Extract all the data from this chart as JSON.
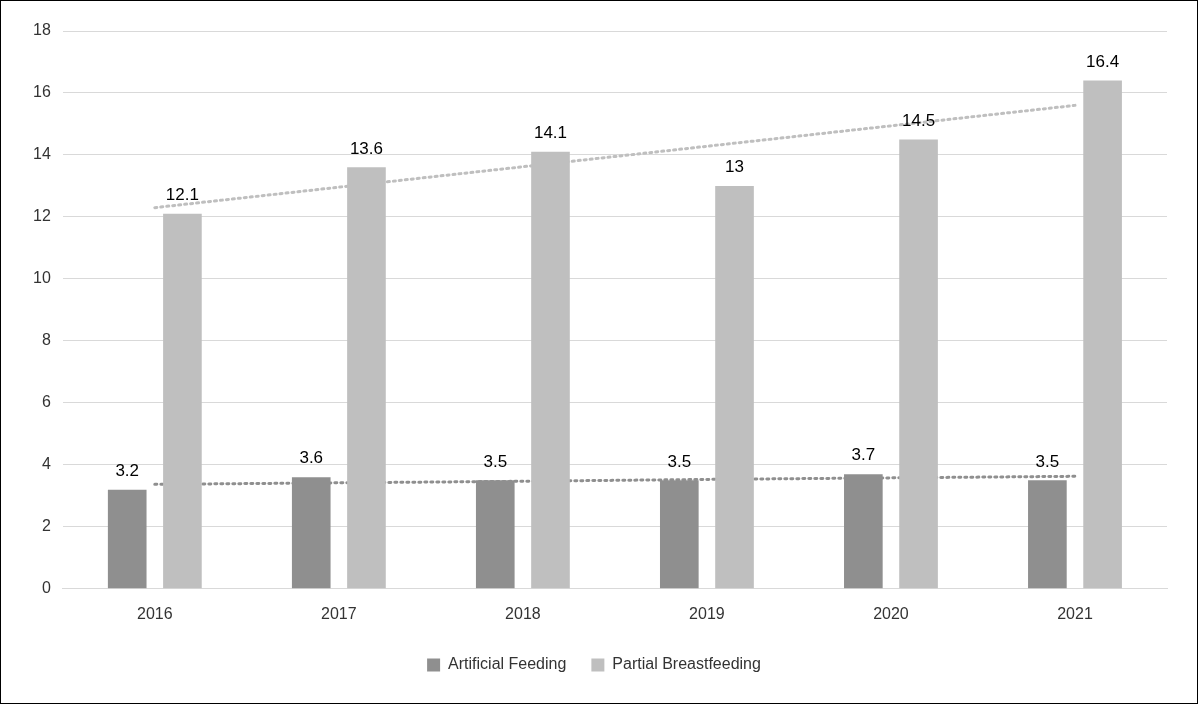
{
  "chart_data": {
    "type": "bar",
    "categories": [
      "2016",
      "2017",
      "2018",
      "2019",
      "2020",
      "2021"
    ],
    "series": [
      {
        "name": "Artificial Feeding",
        "color": "#8f8f8f",
        "values": [
          3.2,
          3.6,
          3.5,
          3.5,
          3.7,
          3.5
        ],
        "value_labels": [
          "3.2",
          "3.6",
          "3.5",
          "3.5",
          "3.7",
          "3.5"
        ]
      },
      {
        "name": "Partial Breastfeeding",
        "color": "#bfbfbf",
        "values": [
          12.1,
          13.6,
          14.1,
          13,
          14.5,
          16.4
        ],
        "value_labels": [
          "12.1",
          "13.6",
          "14.1",
          "13",
          "14.5",
          "16.4"
        ]
      },
      {
        "type": "line",
        "color": "#8f8f8f",
        "values": [
          3.37,
          3.42,
          3.47,
          3.53,
          3.58,
          3.63
        ],
        "line_style": "dotted",
        "marker": "none"
      },
      {
        "type": "line",
        "color": "#bfbfbf",
        "values": [
          12.3,
          12.96,
          13.62,
          14.28,
          14.94,
          15.6
        ],
        "line_style": "dotted",
        "marker": "none"
      }
    ],
    "ylim": [
      0,
      18
    ],
    "yticks": [
      0,
      2,
      4,
      6,
      8,
      10,
      12,
      14,
      16,
      18
    ],
    "grid": "y",
    "legend": "bottom"
  }
}
